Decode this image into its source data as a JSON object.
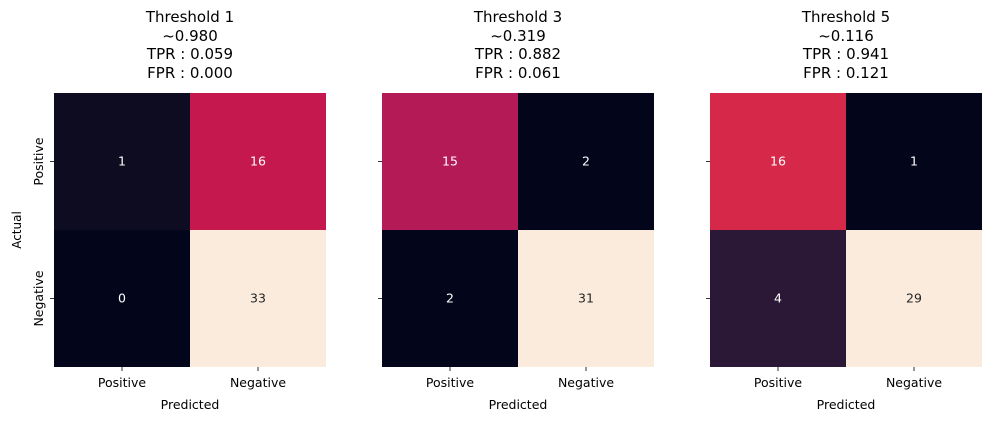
{
  "chart_data": [
    {
      "type": "heatmap",
      "title": [
        "Threshold 1",
        "~0.980",
        "TPR : 0.059",
        "FPR : 0.000"
      ],
      "xlabel": "Predicted",
      "ylabel": "Actual",
      "x_categories": [
        "Positive",
        "Negative"
      ],
      "y_categories": [
        "Positive",
        "Negative"
      ],
      "values": [
        [
          1,
          16
        ],
        [
          0,
          33
        ]
      ],
      "colors": [
        [
          "#0d0c21",
          "#c4184f"
        ],
        [
          "#03051a",
          "#faebdd"
        ]
      ],
      "show_y_ticklabels": true
    },
    {
      "type": "heatmap",
      "title": [
        "Threshold 3",
        "~0.319",
        "TPR : 0.882",
        "FPR : 0.061"
      ],
      "xlabel": "Predicted",
      "ylabel": "",
      "x_categories": [
        "Positive",
        "Negative"
      ],
      "y_categories": [
        "Positive",
        "Negative"
      ],
      "values": [
        [
          15,
          2
        ],
        [
          2,
          31
        ]
      ],
      "colors": [
        [
          "#b41a56",
          "#03051a"
        ],
        [
          "#03051a",
          "#faebdd"
        ]
      ],
      "show_y_ticklabels": false
    },
    {
      "type": "heatmap",
      "title": [
        "Threshold 5",
        "~0.116",
        "TPR : 0.941",
        "FPR : 0.121"
      ],
      "xlabel": "Predicted",
      "ylabel": "",
      "x_categories": [
        "Positive",
        "Negative"
      ],
      "y_categories": [
        "Positive",
        "Negative"
      ],
      "values": [
        [
          16,
          1
        ],
        [
          4,
          29
        ]
      ],
      "colors": [
        [
          "#d6294a",
          "#03051a"
        ],
        [
          "#2b1836",
          "#faebdd"
        ]
      ],
      "show_y_ticklabels": false
    }
  ]
}
